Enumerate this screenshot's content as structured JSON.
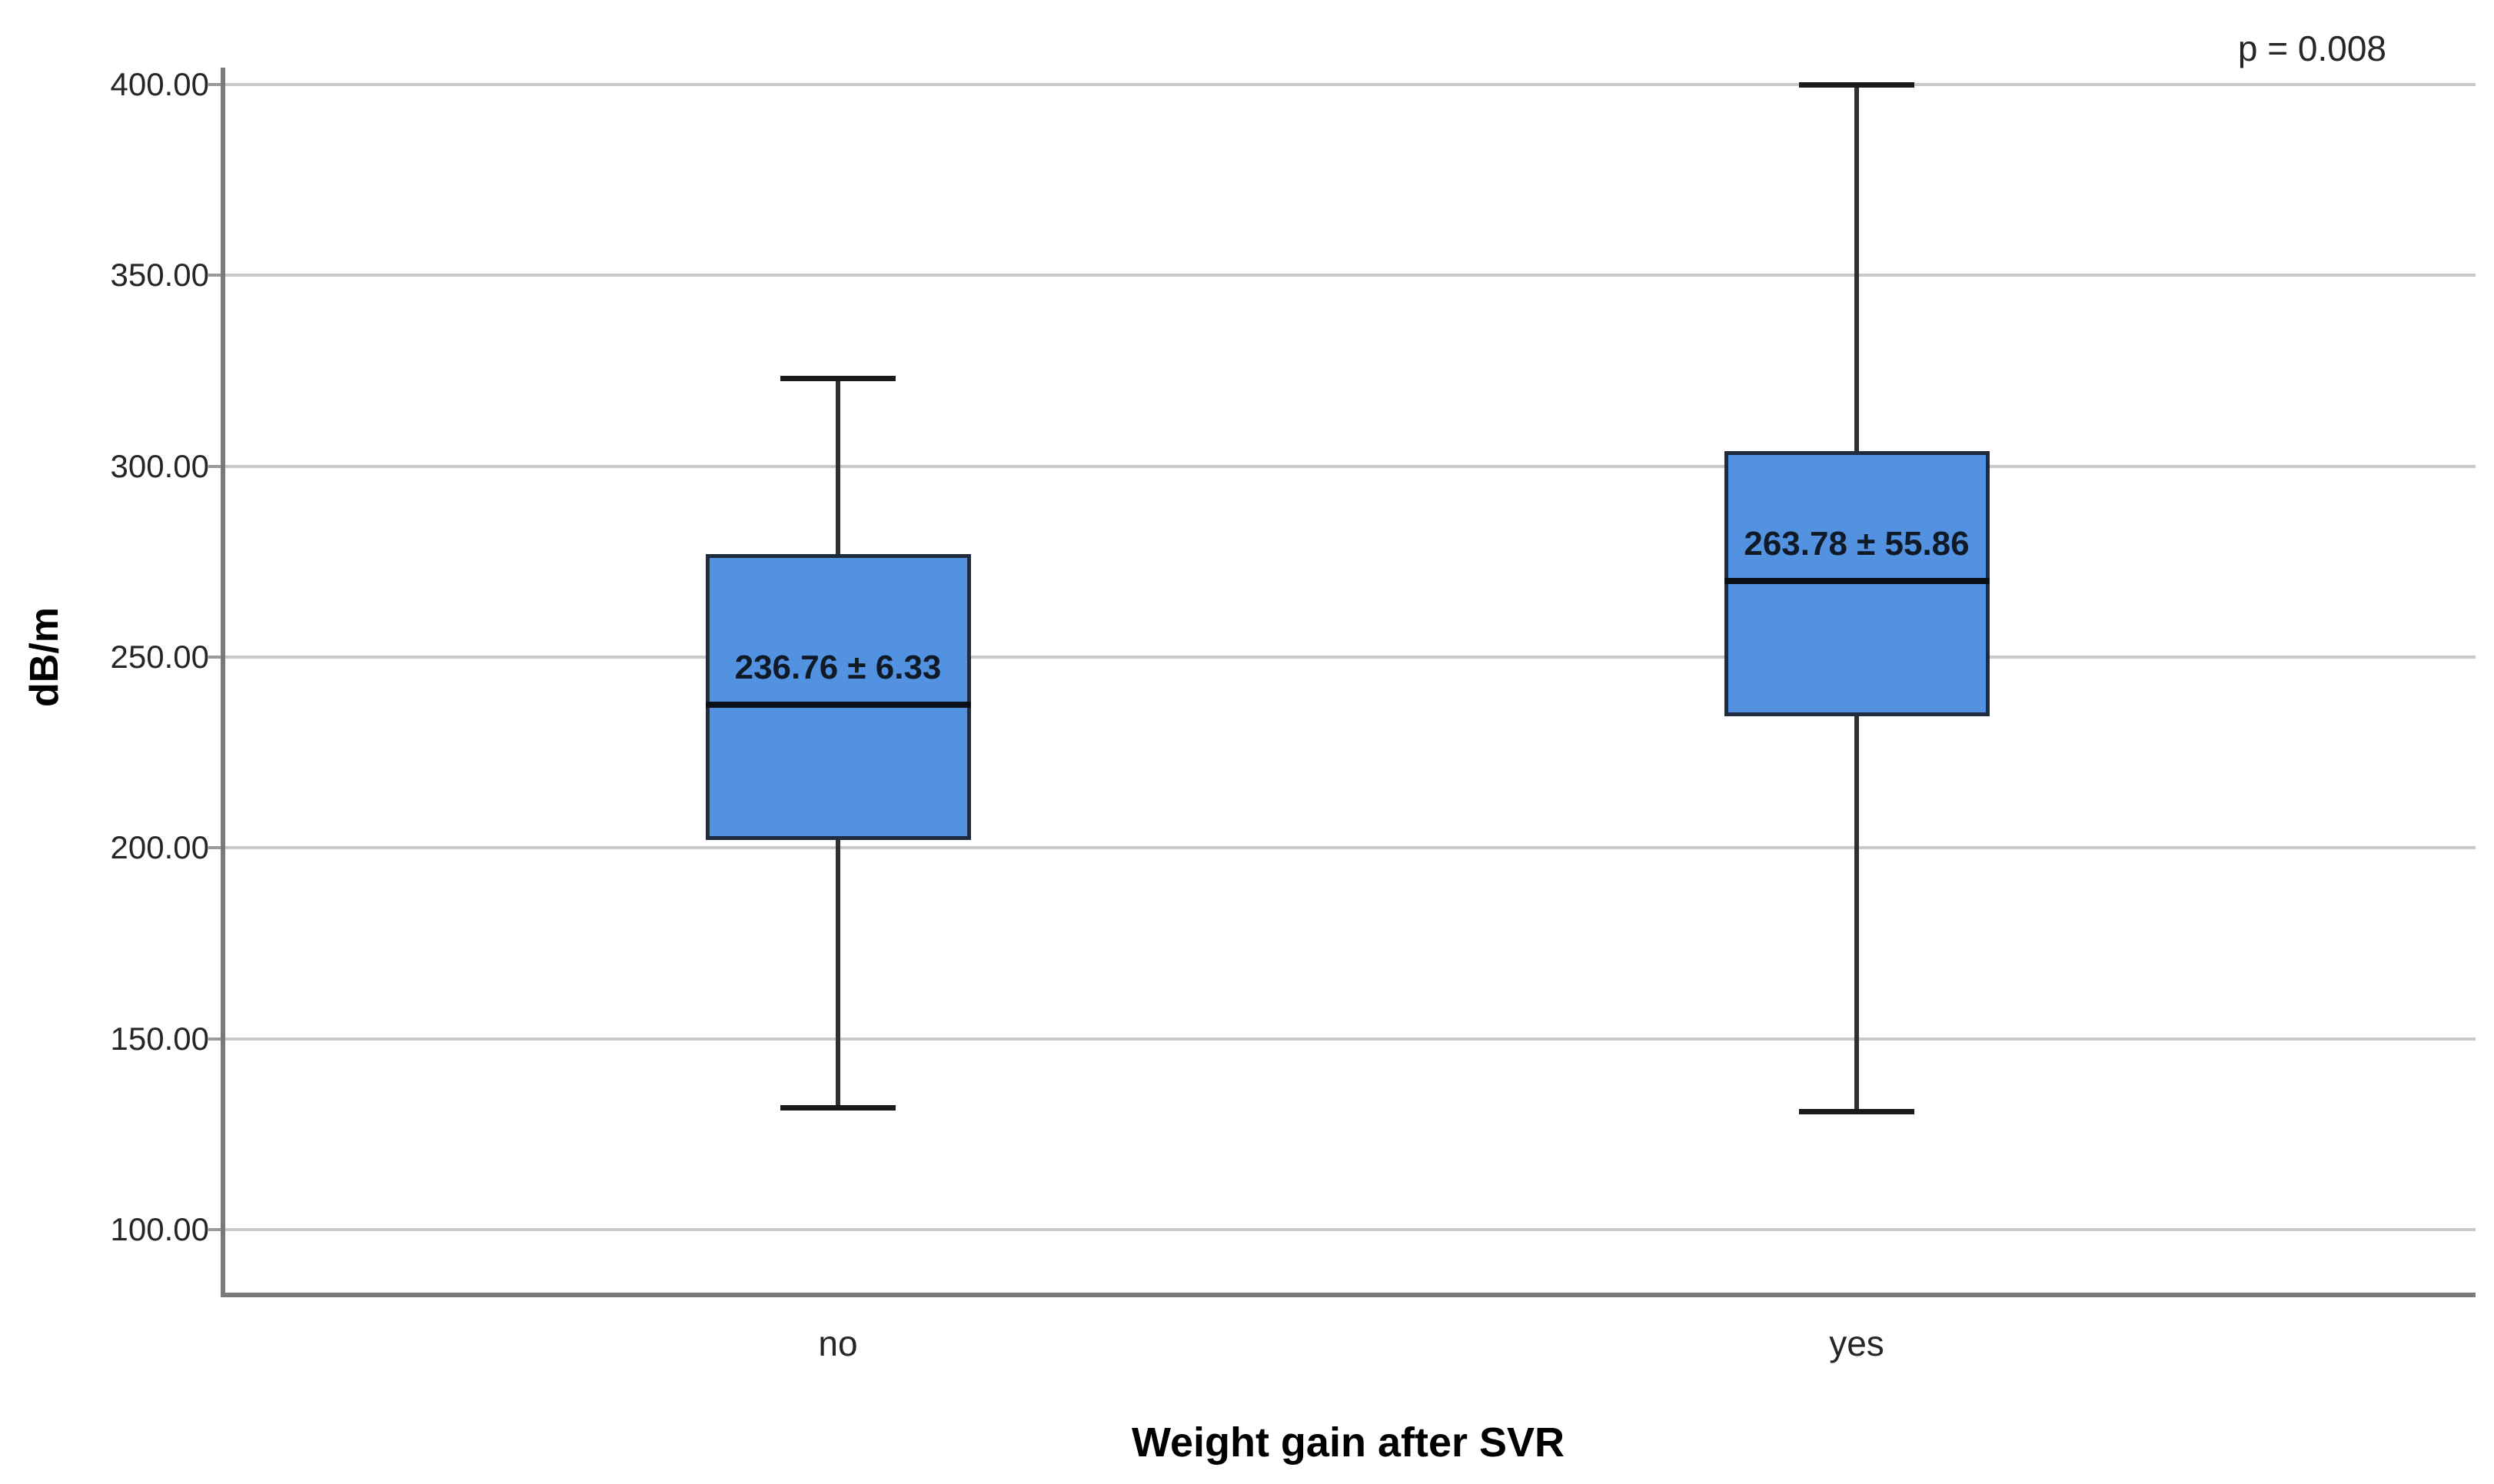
{
  "chart_data": {
    "type": "box",
    "title": "",
    "xlabel": "Weight gain after SVR",
    "ylabel": "dB/m",
    "annotation": "p = 0.008",
    "legend": "none",
    "grid": "horizontal",
    "ylim": [
      100,
      400
    ],
    "y_ticks": [
      400,
      350,
      300,
      250,
      200,
      150,
      100
    ],
    "y_tick_labels": [
      "400.00",
      "350.00",
      "300.00",
      "250.00",
      "200.00",
      "150.00",
      "100.00"
    ],
    "categories": [
      "no",
      "yes"
    ],
    "series": [
      {
        "category": "no",
        "whisker_low": 132,
        "q1": 202,
        "median": 237.5,
        "q3": 277,
        "whisker_high": 323,
        "box_label": "236.76 ± 6.33"
      },
      {
        "category": "yes",
        "whisker_low": 131,
        "q1": 234.5,
        "median": 270,
        "q3": 304,
        "whisker_high": 400,
        "box_label": "263.78 ± 55.86"
      }
    ],
    "colors": {
      "box_fill": "#5292e0",
      "box_border": "#1f2c3d",
      "median_line": "#0b1016",
      "whisker": "#2f2f2f",
      "whisker_cap": "#1a1a1a",
      "gridline": "#c9c9c9",
      "axis_line": "#7a7a7a",
      "text": "#262626",
      "box_label_text": "#0f1a26"
    }
  }
}
